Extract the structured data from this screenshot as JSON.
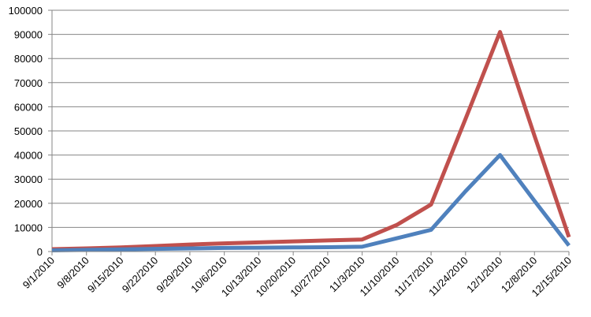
{
  "chart_data": {
    "type": "line",
    "categories": [
      "9/1/2010",
      "9/8/2010",
      "9/15/2010",
      "9/22/2010",
      "9/29/2010",
      "10/6/2010",
      "10/13/2010",
      "10/20/2010",
      "10/27/2010",
      "11/3/2010",
      "11/10/2010",
      "11/17/2010",
      "11/24/2010",
      "12/1/2010",
      "12/8/2010",
      "12/15/2010"
    ],
    "series": [
      {
        "color": "#c0504d",
        "values": [
          1000,
          1300,
          1700,
          2300,
          2900,
          3400,
          3800,
          4200,
          4600,
          5000,
          11000,
          19500,
          55000,
          91000,
          48000,
          6000
        ]
      },
      {
        "color": "#4f81bd",
        "values": [
          500,
          700,
          900,
          1100,
          1300,
          1500,
          1600,
          1700,
          1800,
          2000,
          5500,
          9000,
          25000,
          40000,
          21000,
          2500
        ]
      }
    ],
    "ylim": [
      0,
      100000
    ],
    "yticks": [
      0,
      10000,
      20000,
      30000,
      40000,
      50000,
      60000,
      70000,
      80000,
      90000,
      100000
    ],
    "grid": true
  }
}
